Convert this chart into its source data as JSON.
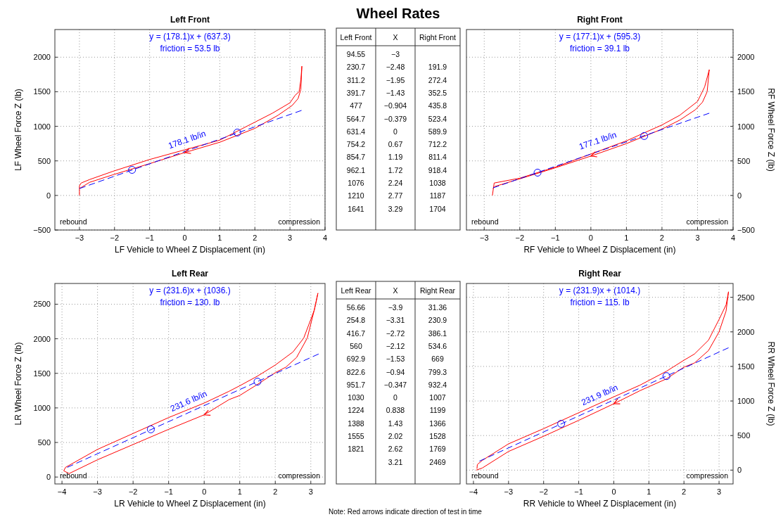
{
  "chart_data": [
    {
      "type": "line",
      "title": "Left Front",
      "xlabel": "LF Vehicle to Wheel Z Displacement (in)",
      "ylabel": "LF Wheel Force Z (lb)",
      "xlim": [
        -3.7,
        4
      ],
      "xticks": [
        -3,
        -2,
        -1,
        0,
        1,
        2,
        3,
        4
      ],
      "ylim": [
        -500,
        2400
      ],
      "yticks": [
        -500,
        0,
        500,
        1000,
        1500,
        2000
      ],
      "grid": true,
      "annotations": [
        "y = (178.1)x + (637.3)",
        "friction = 53.5 lb",
        "rebound",
        "compression",
        "178.1 lb/in"
      ],
      "series": [
        {
          "color": "#ff0000",
          "x": [
            -3,
            -3,
            -2.95,
            -2.71,
            -2.04,
            -1,
            0,
            1,
            2,
            2.5,
            3,
            3.15,
            3.26,
            3.31,
            3.34
          ],
          "values": [
            0,
            140,
            180,
            230,
            350,
            520,
            660,
            800,
            1060,
            1190,
            1340,
            1450,
            1500,
            1670,
            1870
          ]
        },
        {
          "color": "#ff0000",
          "x": [
            3.34,
            3.31,
            3.23,
            3.06,
            2.66,
            2,
            1,
            0,
            -1,
            -2.04,
            -2.71,
            -3
          ],
          "values": [
            1870,
            1530,
            1400,
            1300,
            1160,
            970,
            770,
            620,
            460,
            300,
            190,
            100
          ]
        },
        {
          "color": "#0000ff",
          "line_style": "dashed",
          "x": [
            -3,
            3.33
          ],
          "values": [
            100,
            1230
          ]
        },
        {
          "type": "scatter",
          "color": "#0000ff",
          "marker": "circle",
          "x": [
            -1.5,
            1.5
          ],
          "values": [
            370,
            910
          ]
        }
      ]
    },
    {
      "type": "other",
      "title": "Wheel Rates",
      "categories": [
        "Left Front",
        "X",
        "Right Front"
      ],
      "annotations": [
        "94.55",
        "−3",
        null,
        "230.7",
        "−2.48",
        "191.9",
        "311.2",
        "−1.95",
        "272.4",
        "391.7",
        "−1.43",
        "352.5",
        "477",
        "−0.904",
        "435.8",
        "564.7",
        "−0.379",
        "523.4",
        "631.4",
        "0",
        "589.9",
        "754.2",
        "0.67",
        "712.2",
        "854.7",
        "1.19",
        "811.4",
        "962.1",
        "1.72",
        "918.4",
        "1076",
        "2.24",
        "1038",
        "1210",
        "2.77",
        "1187",
        "1641",
        "3.29",
        "1704"
      ]
    },
    {
      "type": "line",
      "title": "Right Front",
      "xlabel": "RF Vehicle to Wheel Z Displacement (in)",
      "y2label": "RF Wheel Force Z (lb)",
      "xlim": [
        -3.5,
        4
      ],
      "xticks": [
        -3,
        -2,
        -1,
        0,
        1,
        2,
        3,
        4
      ],
      "y2lim": [
        -500,
        2400
      ],
      "y2ticks": [
        -500,
        0,
        500,
        1000,
        1500,
        2000
      ],
      "grid": true,
      "annotations": [
        "y = (177.1)x + (595.3)",
        "friction = 39.1 lb",
        "rebound",
        "compression",
        "177.1 lb/in"
      ],
      "series": [
        {
          "color": "#ff0000",
          "axis": "y2",
          "x": [
            -2.77,
            -2.72,
            -2,
            -1,
            0,
            1,
            2,
            2.5,
            3,
            3.2,
            3.33
          ],
          "values": [
            0,
            180,
            250,
            410,
            600,
            790,
            1020,
            1160,
            1360,
            1570,
            1820
          ]
        },
        {
          "color": "#ff0000",
          "axis": "y2",
          "x": [
            3.33,
            3.27,
            3.14,
            2.94,
            2.5,
            2,
            1,
            0,
            -1,
            -2,
            -2.7,
            -2.76
          ],
          "values": [
            1820,
            1500,
            1350,
            1240,
            1090,
            960,
            750,
            570,
            400,
            240,
            130,
            100
          ]
        },
        {
          "color": "#0000ff",
          "axis": "y2",
          "line_style": "dashed",
          "x": [
            -2.75,
            3.33
          ],
          "values": [
            110,
            1190
          ]
        },
        {
          "type": "scatter",
          "color": "#0000ff",
          "axis": "y2",
          "marker": "circle",
          "x": [
            -1.5,
            1.5
          ],
          "values": [
            330,
            860
          ]
        }
      ]
    },
    {
      "type": "line",
      "title": "Left Rear",
      "xlabel": "LR Vehicle to Wheel Z Displacement (in)",
      "ylabel": "LR Wheel Force Z (lb)",
      "xlim": [
        -4.2,
        3.4
      ],
      "xticks": [
        -4,
        -3,
        -2,
        -1,
        0,
        1,
        2,
        3
      ],
      "ylim": [
        -100,
        2800
      ],
      "yticks": [
        0,
        500,
        1000,
        1500,
        2000,
        2500
      ],
      "grid": true,
      "annotations": [
        "y = (231.6)x + (1036.)",
        "friction = 130. lb",
        "rebound",
        "compression",
        "231.6 lb/in"
      ],
      "series": [
        {
          "color": "#ff0000",
          "x": [
            -3.95,
            -3.9,
            -3,
            -2,
            -1,
            0,
            0.7,
            1,
            1.5,
            2,
            2.5,
            2.8,
            3,
            3.1,
            3.2
          ],
          "values": [
            90,
            140,
            400,
            630,
            860,
            1070,
            1240,
            1320,
            1460,
            1620,
            1810,
            2010,
            2280,
            2420,
            2660
          ]
        },
        {
          "color": "#ff0000",
          "x": [
            3.2,
            3.1,
            2.9,
            2.6,
            2.3,
            2,
            1.5,
            1,
            0.7,
            0,
            -1,
            -2,
            -3,
            -3.8,
            -3.95
          ],
          "values": [
            2660,
            2420,
            2010,
            1730,
            1590,
            1510,
            1340,
            1180,
            1120,
            900,
            690,
            470,
            250,
            50,
            90
          ]
        },
        {
          "color": "#0000ff",
          "line_style": "dashed",
          "x": [
            -3.85,
            3.22
          ],
          "values": [
            140,
            1780
          ]
        },
        {
          "type": "scatter",
          "color": "#0000ff",
          "marker": "circle",
          "x": [
            -1.5,
            1.5
          ],
          "values": [
            690,
            1380
          ]
        }
      ]
    },
    {
      "type": "other",
      "categories": [
        "Left Rear",
        "X",
        "Right Rear"
      ],
      "annotations": [
        "56.66",
        "−3.9",
        "31.36",
        "254.8",
        "−3.31",
        "230.9",
        "416.7",
        "−2.72",
        "386.1",
        "560",
        "−2.12",
        "534.6",
        "692.9",
        "−1.53",
        "669",
        "822.6",
        "−0.94",
        "799.3",
        "951.7",
        "−0.347",
        "932.4",
        "1030",
        "0",
        "1007",
        "1224",
        "0.838",
        "1199",
        "1388",
        "1.43",
        "1366",
        "1555",
        "2.02",
        "1528",
        "1821",
        "2.62",
        "1769",
        null,
        "3.21",
        "2469"
      ]
    },
    {
      "type": "line",
      "title": "Right Rear",
      "xlabel": "RR Vehicle to Wheel Z Displacement (in)",
      "y2label": "RR Wheel Force Z (lb)",
      "xlim": [
        -4.2,
        3.4
      ],
      "xticks": [
        -4,
        -3,
        -2,
        -1,
        0,
        1,
        2,
        3
      ],
      "y2lim": [
        -200,
        2700
      ],
      "y2ticks": [
        0,
        500,
        1000,
        1500,
        2000,
        2500
      ],
      "grid": true,
      "annotations": [
        "y = (231.9)x + (1014.)",
        "friction = 115. lb",
        "rebound",
        "compression",
        "231.9 lb/in",
        "Note: Red arrows indicate direction of test in time"
      ],
      "series": [
        {
          "color": "#ff0000",
          "axis": "y2",
          "x": [
            -3.9,
            -3.89,
            -3.75,
            -3,
            -2,
            -1,
            0,
            0.75,
            1.5,
            2,
            2.3,
            2.7,
            3,
            3.2,
            3.27
          ],
          "values": [
            20,
            80,
            140,
            380,
            600,
            830,
            1060,
            1230,
            1430,
            1590,
            1680,
            1880,
            2180,
            2390,
            2580
          ]
        },
        {
          "color": "#ff0000",
          "axis": "y2",
          "x": [
            3.27,
            3.2,
            3,
            2.7,
            2.3,
            2,
            1.5,
            0.75,
            0,
            -1,
            -2,
            -3,
            -3.75,
            -3.92
          ],
          "values": [
            2580,
            2300,
            2000,
            1730,
            1550,
            1490,
            1320,
            1150,
            960,
            720,
            490,
            270,
            30,
            0
          ]
        },
        {
          "color": "#0000ff",
          "axis": "y2",
          "line_style": "dashed",
          "x": [
            -3.83,
            3.27
          ],
          "values": [
            130,
            1770
          ]
        },
        {
          "type": "scatter",
          "color": "#0000ff",
          "axis": "y2",
          "marker": "circle",
          "x": [
            -1.5,
            1.5
          ],
          "values": [
            670,
            1360
          ]
        }
      ]
    }
  ]
}
